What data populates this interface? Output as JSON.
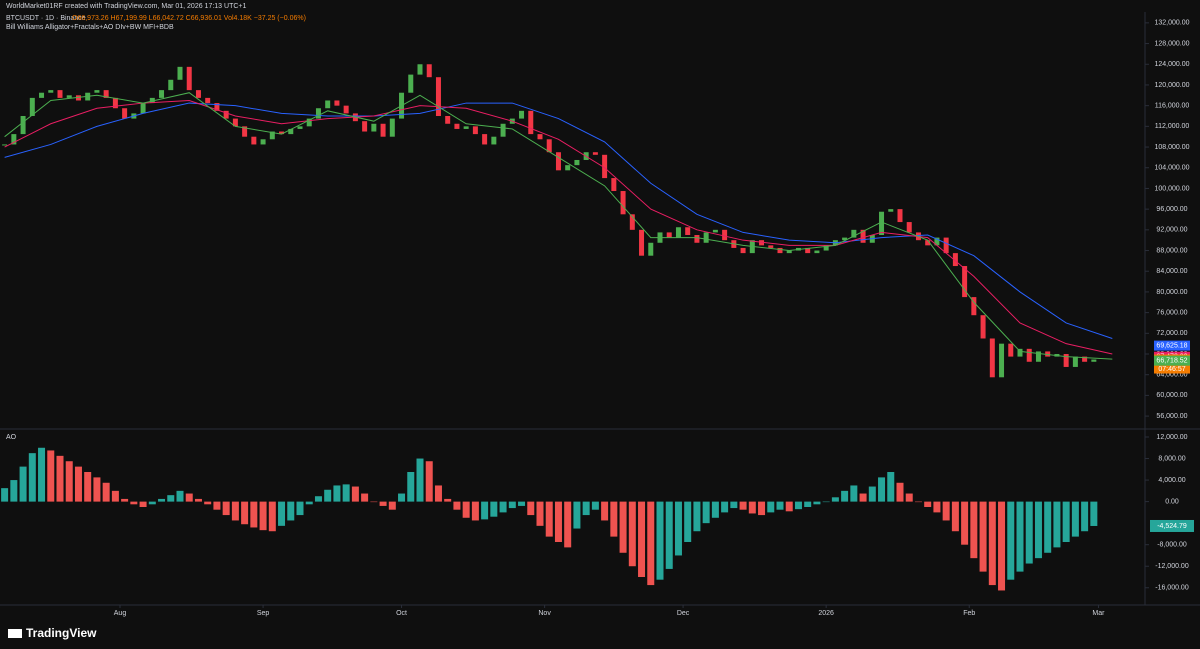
{
  "header": {
    "credit": "WorldMarket01RF created with TradingView.com, Mar 01, 2026 17:13 UTC+1",
    "symbol": "BTCUSDT · 1D · Binance",
    "ohlc": "O66,973.26 H67,199.99 L66,042.72 C66,936.01 Vol4.18K −37.25 (−0.06%)",
    "indicator": "Bill Williams Alligator+Fractals+AO DIv+BW MFI+BDB"
  },
  "footer": {
    "brand": "TradingView"
  },
  "chart_data": [
    {
      "type": "candlestick",
      "up_color": "#4caf50",
      "down_color": "#f23645",
      "xlim": [
        5,
        252
      ],
      "ylim": [
        53700,
        134100
      ],
      "x": [
        6,
        8,
        10,
        12,
        14,
        16,
        18,
        20,
        22,
        24,
        26,
        28,
        30,
        32,
        34,
        36,
        38,
        40,
        42,
        44,
        46,
        48,
        50,
        52,
        54,
        56,
        58,
        60,
        62,
        64,
        66,
        68,
        70,
        72,
        74,
        76,
        78,
        80,
        82,
        84,
        86,
        88,
        90,
        92,
        94,
        96,
        98,
        100,
        102,
        104,
        106,
        108,
        110,
        112,
        114,
        116,
        118,
        120,
        122,
        124,
        126,
        128,
        130,
        132,
        134,
        136,
        138,
        140,
        142,
        144,
        146,
        148,
        150,
        152,
        154,
        156,
        158,
        160,
        162,
        164,
        166,
        168,
        170,
        172,
        174,
        176,
        178,
        180,
        182,
        184,
        186,
        188,
        190,
        192,
        194,
        196,
        198,
        200,
        202,
        204,
        206,
        208,
        210,
        212,
        214,
        216,
        218,
        220,
        222,
        224,
        226,
        228,
        230,
        232,
        234,
        236,
        238,
        240,
        242
      ],
      "values": [
        108500,
        110500,
        114000,
        117500,
        118500,
        119000,
        117500,
        118000,
        117000,
        118500,
        119000,
        117500,
        115500,
        113500,
        114500,
        116500,
        117500,
        119000,
        121000,
        123500,
        119000,
        117500,
        116500,
        115000,
        113500,
        112000,
        110000,
        108500,
        109500,
        111000,
        110500,
        111500,
        112000,
        113500,
        115500,
        117000,
        116000,
        114500,
        113000,
        111000,
        112500,
        110000,
        113500,
        118500,
        122000,
        124000,
        121500,
        114000,
        112500,
        111500,
        112000,
        110500,
        108500,
        110000,
        112500,
        113500,
        115000,
        110500,
        109500,
        107000,
        103500,
        104500,
        105500,
        107000,
        106500,
        102000,
        99500,
        95000,
        92000,
        87000,
        89500,
        91500,
        90500,
        92500,
        91000,
        89500,
        91500,
        92000,
        90000,
        88500,
        87500,
        90000,
        89000,
        88500,
        87500,
        88000,
        88500,
        87500,
        88000,
        89000,
        90000,
        90500,
        92000,
        89500,
        91000,
        95500,
        96000,
        93500,
        91500,
        90000,
        89000,
        90500,
        87500,
        85000,
        79000,
        75500,
        71000,
        63500,
        70000,
        67500,
        69000,
        66500,
        68500,
        67500,
        68000,
        65500,
        67500,
        66500,
        66936
      ],
      "overlays": {
        "x": [
          6,
          16,
          26,
          36,
          46,
          56,
          66,
          76,
          86,
          96,
          106,
          116,
          126,
          136,
          146,
          156,
          166,
          176,
          186,
          196,
          206,
          216,
          226,
          236,
          246
        ],
        "series": [
          {
            "color": "#2962ff",
            "values": [
              106000,
              108500,
              112000,
              114500,
              116500,
              116000,
              114500,
              114000,
              114000,
              114500,
              116500,
              116500,
              113500,
              109000,
              101000,
              95000,
              91500,
              90000,
              89500,
              90500,
              91000,
              87000,
              80000,
              74000,
              71000
            ]
          },
          {
            "color": "#e91e63",
            "values": [
              108000,
              112500,
              115500,
              116500,
              117000,
              114000,
              112500,
              113500,
              114000,
              116000,
              115500,
              113000,
              109500,
              104000,
              96000,
              92000,
              90000,
              89000,
              89000,
              91500,
              90500,
              83000,
              74000,
              70000,
              68000
            ]
          },
          {
            "color": "#4caf50",
            "values": [
              110000,
              117000,
              118000,
              116500,
              118500,
              112000,
              110500,
              115000,
              113000,
              118000,
              112500,
              111500,
              106000,
              100500,
              90500,
              90500,
              89000,
              88000,
              89000,
              93500,
              90000,
              78000,
              68500,
              67500,
              67000
            ]
          }
        ]
      },
      "price_labels": [
        {
          "value": 69625.18,
          "label": "69,625.18",
          "color": "#2962ff"
        },
        {
          "value": 67478.02,
          "label": "67,478.02",
          "color": "#e91e63"
        },
        {
          "value": 66936.01,
          "label": "66,936.01",
          "color": "#f57c00"
        },
        {
          "value": 66718.52,
          "label": "66,718.52",
          "color": "#4caf50"
        }
      ],
      "countdown": "07:46:57",
      "yticks": [
        {
          "value": 56000,
          "label": "56,000.00"
        },
        {
          "value": 60000,
          "label": "60,000.00"
        },
        {
          "value": 64000,
          "label": "64,000.00"
        },
        {
          "value": 68000,
          "label": "68,000.00"
        },
        {
          "value": 72000,
          "label": "72,000.00"
        },
        {
          "value": 76000,
          "label": "76,000.00"
        },
        {
          "value": 80000,
          "label": "80,000.00"
        },
        {
          "value": 84000,
          "label": "84,000.00"
        },
        {
          "value": 88000,
          "label": "88,000.00"
        },
        {
          "value": 92000,
          "label": "92,000.00"
        },
        {
          "value": 96000,
          "label": "96,000.00"
        },
        {
          "value": 100000,
          "label": "100,000.00"
        },
        {
          "value": 104000,
          "label": "104,000.00"
        },
        {
          "value": 108000,
          "label": "108,000.00"
        },
        {
          "value": 112000,
          "label": "112,000.00"
        },
        {
          "value": 116000,
          "label": "116,000.00"
        },
        {
          "value": 120000,
          "label": "120,000.00"
        },
        {
          "value": 124000,
          "label": "124,000.00"
        },
        {
          "value": 128000,
          "label": "128,000.00"
        },
        {
          "value": 132000,
          "label": "132,000.00"
        }
      ]
    },
    {
      "type": "histogram",
      "title": "AO",
      "up_color": "#26a69a",
      "down_color": "#ef5350",
      "xlim": [
        5,
        252
      ],
      "ylim": [
        -19200,
        13300
      ],
      "x": [
        6,
        8,
        10,
        12,
        14,
        16,
        18,
        20,
        22,
        24,
        26,
        28,
        30,
        32,
        34,
        36,
        38,
        40,
        42,
        44,
        46,
        48,
        50,
        52,
        54,
        56,
        58,
        60,
        62,
        64,
        66,
        68,
        70,
        72,
        74,
        76,
        78,
        80,
        82,
        84,
        86,
        88,
        90,
        92,
        94,
        96,
        98,
        100,
        102,
        104,
        106,
        108,
        110,
        112,
        114,
        116,
        118,
        120,
        122,
        124,
        126,
        128,
        130,
        132,
        134,
        136,
        138,
        140,
        142,
        144,
        146,
        148,
        150,
        152,
        154,
        156,
        158,
        160,
        162,
        164,
        166,
        168,
        170,
        172,
        174,
        176,
        178,
        180,
        182,
        184,
        186,
        188,
        190,
        192,
        194,
        196,
        198,
        200,
        202,
        204,
        206,
        208,
        210,
        212,
        214,
        216,
        218,
        220,
        222,
        224,
        226,
        228,
        230,
        232,
        234,
        236,
        238,
        240,
        242
      ],
      "values": [
        2500,
        4000,
        6500,
        9000,
        10000,
        9500,
        8500,
        7500,
        6500,
        5500,
        4500,
        3500,
        2000,
        500,
        -500,
        -1000,
        -500,
        500,
        1200,
        2000,
        1500,
        500,
        -500,
        -1500,
        -2500,
        -3500,
        -4200,
        -4800,
        -5300,
        -5500,
        -4500,
        -3500,
        -2500,
        -500,
        1000,
        2200,
        3000,
        3200,
        2800,
        1500,
        0,
        -800,
        -1500,
        1500,
        5500,
        8000,
        7500,
        3000,
        500,
        -1500,
        -3000,
        -3500,
        -3300,
        -2800,
        -2000,
        -1200,
        -800,
        -2500,
        -4500,
        -6500,
        -7500,
        -8500,
        -5000,
        -2500,
        -1500,
        -3500,
        -6500,
        -9500,
        -12000,
        -14000,
        -15500,
        -14500,
        -12500,
        -10000,
        -7500,
        -5500,
        -4000,
        -3000,
        -2000,
        -1200,
        -1500,
        -2200,
        -2500,
        -2000,
        -1500,
        -1800,
        -1400,
        -1000,
        -500,
        0,
        800,
        2000,
        3000,
        1500,
        2800,
        4500,
        5500,
        3500,
        1500,
        0,
        -1000,
        -2000,
        -3500,
        -5500,
        -8000,
        -10500,
        -13000,
        -15500,
        -16500,
        -14500,
        -13000,
        -11500,
        -10500,
        -9500,
        -8500,
        -7500,
        -6500,
        -5500,
        -4524.79
      ],
      "last_label": {
        "value": -4524.79,
        "label": "-4,524.79"
      },
      "yticks": [
        {
          "value": 12000,
          "label": "12,000.00"
        },
        {
          "value": 8000,
          "label": "8,000.00"
        },
        {
          "value": 4000,
          "label": "4,000.00"
        },
        {
          "value": 0,
          "label": "0.00"
        },
        {
          "value": -8000,
          "label": "-8,000.00"
        },
        {
          "value": -12000,
          "label": "-12,000.00"
        },
        {
          "value": -16000,
          "label": "-16,000.00"
        }
      ],
      "xticks": [
        {
          "value": 31,
          "label": "Aug"
        },
        {
          "value": 62,
          "label": "Sep"
        },
        {
          "value": 92,
          "label": "Oct"
        },
        {
          "value": 123,
          "label": "Nov"
        },
        {
          "value": 153,
          "label": "Dec"
        },
        {
          "value": 184,
          "label": "2026"
        },
        {
          "value": 215,
          "label": "Feb"
        },
        {
          "value": 243,
          "label": "Mar"
        }
      ]
    }
  ]
}
